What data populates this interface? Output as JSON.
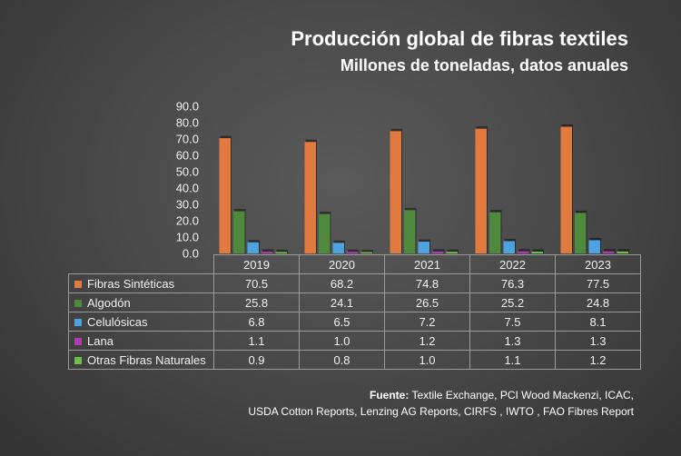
{
  "chart_data": {
    "type": "bar",
    "title": "Producción global de fibras textiles",
    "subtitle": "Millones de toneladas, datos anuales",
    "categories": [
      "2019",
      "2020",
      "2021",
      "2022",
      "2023"
    ],
    "y_ticks": [
      "0.0",
      "10.0",
      "20.0",
      "30.0",
      "40.0",
      "50.0",
      "60.0",
      "70.0",
      "80.0",
      "90.0"
    ],
    "ylim": [
      0,
      90
    ],
    "grid": false,
    "legend": "data-table",
    "series": [
      {
        "name": "Fibras Sintéticas",
        "color": "#e07a3e",
        "values": [
          70.5,
          68.2,
          74.8,
          76.3,
          77.5
        ],
        "labels": [
          "70.5",
          "68.2",
          "74.8",
          "76.3",
          "77.5"
        ]
      },
      {
        "name": "Algodón",
        "color": "#4f8a3c",
        "values": [
          25.8,
          24.1,
          26.5,
          25.2,
          24.8
        ],
        "labels": [
          "25.8",
          "24.1",
          "26.5",
          "25.2",
          "24.8"
        ]
      },
      {
        "name": "Celulósicas",
        "color": "#4da3e0",
        "values": [
          6.8,
          6.5,
          7.2,
          7.5,
          8.1
        ],
        "labels": [
          "6.8",
          "6.5",
          "7.2",
          "7.5",
          "8.1"
        ]
      },
      {
        "name": "Lana",
        "color": "#b03ab0",
        "values": [
          1.1,
          1.0,
          1.2,
          1.3,
          1.3
        ],
        "labels": [
          "1.1",
          "1.0",
          "1.2",
          "1.3",
          "1.3"
        ]
      },
      {
        "name": "Otras Fibras Naturales",
        "color": "#6cc04a",
        "values": [
          0.9,
          0.8,
          1.0,
          1.1,
          1.2
        ],
        "labels": [
          "0.9",
          "0.8",
          "1.0",
          "1.1",
          "1.2"
        ]
      }
    ]
  },
  "source": {
    "label": "Fuente:",
    "line1": "Textile Exchange, PCI Wood Mackenzi, ICAC,",
    "line2": "USDA Cotton Reports, Lenzing AG Reports, CIRFS , IWTO , FAO Fibres Report"
  }
}
